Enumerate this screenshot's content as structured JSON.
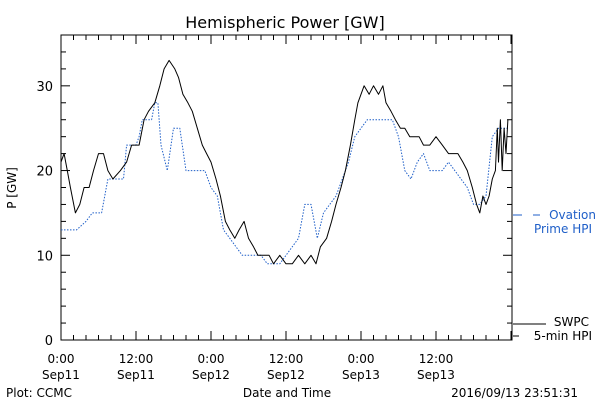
{
  "chart_data": {
    "type": "line",
    "title": "Hemispheric Power [GW]",
    "xlabel": "Date and Time",
    "ylabel": "P [GW]",
    "ylim": [
      0,
      36
    ],
    "xlim_hours": [
      0,
      72
    ],
    "yticks": [
      0,
      10,
      20,
      30
    ],
    "xticks": [
      {
        "hour": 0,
        "time": "0:00",
        "date": "Sep11"
      },
      {
        "hour": 12,
        "time": "12:00",
        "date": "Sep11"
      },
      {
        "hour": 24,
        "time": "0:00",
        "date": "Sep12"
      },
      {
        "hour": 36,
        "time": "12:00",
        "date": "Sep12"
      },
      {
        "hour": 48,
        "time": "0:00",
        "date": "Sep13"
      },
      {
        "hour": 60,
        "time": "12:00",
        "date": "Sep13"
      }
    ],
    "grid": false,
    "legend_position": "right",
    "series": [
      {
        "name": "SWPC 5-min HPI",
        "color": "#000000",
        "style": "solid",
        "points": [
          [
            0,
            21
          ],
          [
            0.5,
            22
          ],
          [
            1,
            20
          ],
          [
            1.5,
            18
          ],
          [
            2.3,
            15
          ],
          [
            3,
            16
          ],
          [
            3.7,
            18
          ],
          [
            4.5,
            18
          ],
          [
            5.2,
            20
          ],
          [
            6,
            22
          ],
          [
            6.8,
            22
          ],
          [
            7.5,
            20
          ],
          [
            8.3,
            19
          ],
          [
            9.5,
            20
          ],
          [
            10.5,
            21
          ],
          [
            11.3,
            23
          ],
          [
            12.5,
            23
          ],
          [
            13.3,
            26
          ],
          [
            14,
            27
          ],
          [
            15,
            28
          ],
          [
            15.8,
            30
          ],
          [
            16.5,
            32
          ],
          [
            17.3,
            33
          ],
          [
            18.2,
            32
          ],
          [
            18.8,
            31
          ],
          [
            19.5,
            29
          ],
          [
            20.3,
            28
          ],
          [
            21,
            27
          ],
          [
            21.8,
            25
          ],
          [
            22.6,
            23
          ],
          [
            23.3,
            22
          ],
          [
            24,
            21
          ],
          [
            24.8,
            19
          ],
          [
            25.5,
            17
          ],
          [
            26.3,
            14
          ],
          [
            27,
            13
          ],
          [
            27.8,
            12
          ],
          [
            28.5,
            13
          ],
          [
            29.3,
            14
          ],
          [
            30,
            12
          ],
          [
            30.8,
            11
          ],
          [
            31.5,
            10
          ],
          [
            32.5,
            10
          ],
          [
            33.3,
            10
          ],
          [
            34,
            9
          ],
          [
            35,
            10
          ],
          [
            36,
            9
          ],
          [
            37,
            9
          ],
          [
            38,
            10
          ],
          [
            39,
            9
          ],
          [
            40,
            10
          ],
          [
            40.8,
            9
          ],
          [
            41.5,
            11
          ],
          [
            42.5,
            12
          ],
          [
            43.3,
            14
          ],
          [
            44,
            16
          ],
          [
            44.8,
            18
          ],
          [
            45.5,
            20
          ],
          [
            46.3,
            23
          ],
          [
            47,
            26
          ],
          [
            47.5,
            28
          ],
          [
            48,
            29
          ],
          [
            48.5,
            30
          ],
          [
            49.3,
            29
          ],
          [
            50,
            30
          ],
          [
            50.8,
            29
          ],
          [
            51.5,
            30
          ],
          [
            52,
            28
          ],
          [
            52.8,
            27
          ],
          [
            53.5,
            26
          ],
          [
            54.3,
            25
          ],
          [
            55,
            25
          ],
          [
            55.8,
            24
          ],
          [
            56.5,
            24
          ],
          [
            57.3,
            24
          ],
          [
            58,
            23
          ],
          [
            59,
            23
          ],
          [
            60,
            24
          ],
          [
            61,
            23
          ],
          [
            62,
            22
          ],
          [
            62.8,
            22
          ],
          [
            63.5,
            22
          ],
          [
            64.3,
            21
          ],
          [
            65,
            20
          ],
          [
            65.8,
            18
          ],
          [
            66.5,
            16
          ],
          [
            67,
            15
          ],
          [
            67.5,
            17
          ],
          [
            68,
            16
          ],
          [
            68.5,
            17
          ],
          [
            69,
            19
          ],
          [
            69.5,
            20
          ],
          [
            69.8,
            25
          ],
          [
            70,
            21
          ],
          [
            70.3,
            26
          ],
          [
            70.6,
            20
          ],
          [
            70.9,
            25
          ],
          [
            71.2,
            22
          ],
          [
            71.5,
            26
          ]
        ]
      },
      {
        "name": "Ovation Prime HPI",
        "color": "#1f5fc8",
        "style": "dotted",
        "points": [
          [
            0,
            13
          ],
          [
            2.5,
            13
          ],
          [
            4,
            14
          ],
          [
            5,
            15
          ],
          [
            6.5,
            15
          ],
          [
            7.5,
            19
          ],
          [
            10,
            19
          ],
          [
            10.5,
            23
          ],
          [
            12,
            23
          ],
          [
            12.5,
            24
          ],
          [
            13,
            26
          ],
          [
            14.5,
            26
          ],
          [
            15,
            28
          ],
          [
            15.5,
            28
          ],
          [
            16,
            23
          ],
          [
            17,
            20
          ],
          [
            18,
            25
          ],
          [
            19,
            25
          ],
          [
            20,
            20
          ],
          [
            23,
            20
          ],
          [
            24,
            18
          ],
          [
            25,
            17
          ],
          [
            26,
            13
          ],
          [
            27,
            12
          ],
          [
            28,
            11
          ],
          [
            29,
            10
          ],
          [
            30,
            10
          ],
          [
            31.5,
            10
          ],
          [
            32,
            10
          ],
          [
            33,
            9
          ],
          [
            35,
            9
          ],
          [
            36,
            10
          ],
          [
            38,
            12
          ],
          [
            39,
            16
          ],
          [
            40,
            16
          ],
          [
            41,
            12
          ],
          [
            42,
            15
          ],
          [
            44,
            17
          ],
          [
            45,
            19
          ],
          [
            46,
            21
          ],
          [
            47,
            24
          ],
          [
            48,
            25
          ],
          [
            49,
            26
          ],
          [
            50,
            26
          ],
          [
            53,
            26
          ],
          [
            54,
            24
          ],
          [
            55,
            20
          ],
          [
            56,
            19
          ],
          [
            57,
            21
          ],
          [
            58,
            22
          ],
          [
            59,
            20
          ],
          [
            60,
            20
          ],
          [
            61,
            20
          ],
          [
            62,
            21
          ],
          [
            63,
            20
          ],
          [
            64,
            19
          ],
          [
            65,
            18
          ],
          [
            66,
            16
          ],
          [
            67,
            16
          ],
          [
            68,
            17
          ],
          [
            69,
            24
          ],
          [
            70,
            25
          ],
          [
            71.5,
            25
          ]
        ]
      }
    ]
  },
  "footer": {
    "left": "Plot: CCMC",
    "center": "Date and Time",
    "right": "2016/09/13 23:51:31"
  },
  "legend": {
    "ovation_line1": "Ovation",
    "ovation_line2": "Prime HPI",
    "swpc_line1": "SWPC",
    "swpc_line2": "5-min HPI"
  }
}
